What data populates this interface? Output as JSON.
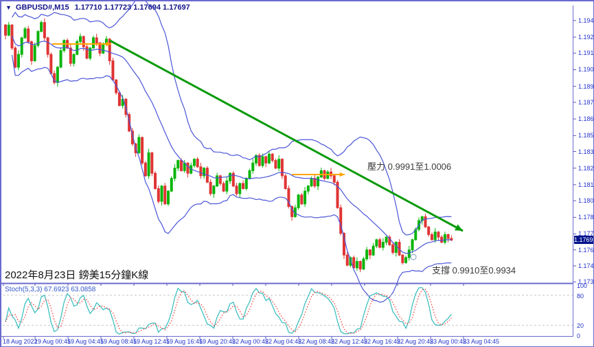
{
  "window": {
    "dropdown_icon": "▼",
    "title_symbol": "GBPUSD#,M15",
    "title_quotes": "1.17710 1.17723 1.17694 1.17697"
  },
  "colors": {
    "bull": "#0ab50a",
    "bear": "#e03434",
    "band": "#4a55d8",
    "trend_green": "#089a08",
    "arrow_orange": "#ffa500",
    "stoch_k": "#3fbfbf",
    "stoch_d": "#ff3333",
    "level_dash": "#c8c8c8",
    "border": "#6a6ace",
    "axis_tick": "#5555bb",
    "price_tag_bg": "#00128b"
  },
  "chart_data": {
    "type": "candlestick",
    "symbol": "GBPUSD#",
    "timeframe": "M15",
    "ohlc_display": {
      "open": "1.17710",
      "high": "1.17723",
      "low": "1.17694",
      "close": "1.17697"
    },
    "current_price": "1.17697",
    "ylim": [
      1.17355,
      1.19565
    ],
    "y_ticks": [
      1.19415,
      1.19285,
      1.1916,
      1.1903,
      1.189,
      1.18775,
      1.18645,
      1.18515,
      1.1839,
      1.1826,
      1.1813,
      1.18005,
      1.17875,
      1.17745,
      1.1762,
      1.17495,
      1.1737
    ],
    "x_labels": [
      "18 Aug 2022",
      "19 Aug 00:45",
      "19 Aug 04:45",
      "19 Aug 08:45",
      "19 Aug 12:45",
      "19 Aug 16:45",
      "19 Aug 20:45",
      "22 Aug 00:45",
      "22 Aug 04:45",
      "22 Aug 08:45",
      "22 Aug 12:45",
      "22 Aug 16:45",
      "22 Aug 20:45",
      "23 Aug 00:45",
      "23 Aug 04:45"
    ],
    "first_open": 1.1938,
    "closes": [
      1.193,
      1.1938,
      1.192,
      1.1905,
      1.1915,
      1.1928,
      1.1935,
      1.1925,
      1.191,
      1.1922,
      1.1933,
      1.194,
      1.1928,
      1.1915,
      1.19,
      1.1893,
      1.1905,
      1.1918,
      1.1926,
      1.192,
      1.1908,
      1.1915,
      1.1925,
      1.1929,
      1.1921,
      1.1912,
      1.192,
      1.1928,
      1.1924,
      1.1916,
      1.1923,
      1.1927,
      1.191,
      1.1895,
      1.1885,
      1.1875,
      1.188,
      1.1868,
      1.1855,
      1.1845,
      1.1838,
      1.185,
      1.183,
      1.182,
      1.1838,
      1.1822,
      1.181,
      1.18,
      1.1812,
      1.1798,
      1.1808,
      1.1818,
      1.1826,
      1.1832,
      1.1824,
      1.183,
      1.1822,
      1.1828,
      1.1833,
      1.1827,
      1.182,
      1.1826,
      1.1815,
      1.1806,
      1.1812,
      1.182,
      1.1814,
      1.1808,
      1.1816,
      1.1822,
      1.1812,
      1.1806,
      1.1814,
      1.181,
      1.1818,
      1.1824,
      1.183,
      1.1836,
      1.1828,
      1.1835,
      1.183,
      1.1837,
      1.1832,
      1.1826,
      1.1833,
      1.182,
      1.181,
      1.1796,
      1.1788,
      1.1795,
      1.1805,
      1.1798,
      1.1808,
      1.1812,
      1.1818,
      1.1812,
      1.1819,
      1.1824,
      1.1818,
      1.1823,
      1.182,
      1.1815,
      1.1795,
      1.1775,
      1.1758,
      1.175,
      1.1756,
      1.1748,
      1.1753,
      1.1747,
      1.1755,
      1.1762,
      1.1758,
      1.1765,
      1.177,
      1.1764,
      1.1768,
      1.1772,
      1.1766,
      1.176,
      1.1768,
      1.1758,
      1.1752,
      1.1756,
      1.1762,
      1.177,
      1.1778,
      1.1785,
      1.1788,
      1.178,
      1.1774,
      1.177,
      1.1776,
      1.1772,
      1.1768,
      1.1774,
      1.1771,
      1.17697
    ],
    "indicators": {
      "bollinger": {
        "name": "Bollinger Bands",
        "period": 20,
        "deviation": 2
      },
      "stochastic": {
        "label_name": "Stoch(5,3,3)",
        "k_value": "67.6923",
        "d_value": "63.0858",
        "levels": [
          80,
          20
        ],
        "scale_labels": [
          "100",
          "80",
          "20",
          "0"
        ],
        "scale_values": [
          100,
          80,
          20,
          0
        ]
      }
    },
    "drawings": {
      "trendline_green": {
        "x1": 158,
        "y1": 57,
        "x2": 672,
        "y2": 334
      },
      "resistance_arrow_1": {
        "x1": 74,
        "y1": 62,
        "x2": 160,
        "y2": 62
      },
      "resistance_arrow_2": {
        "x1": 423,
        "y1": 252,
        "x2": 500,
        "y2": 252
      },
      "marker_circle": {
        "x": 600,
        "y": 372,
        "r": 4
      }
    },
    "annotations": {
      "resistance": {
        "text": "壓力 0.9991至1.0006",
        "x": 533,
        "y": 230
      },
      "support": {
        "text": "支撐 0.9910至0.9934",
        "x": 627,
        "y": 381
      },
      "date_label": {
        "text": "2022年8月23日 鎊美15分鐘K線"
      }
    }
  }
}
